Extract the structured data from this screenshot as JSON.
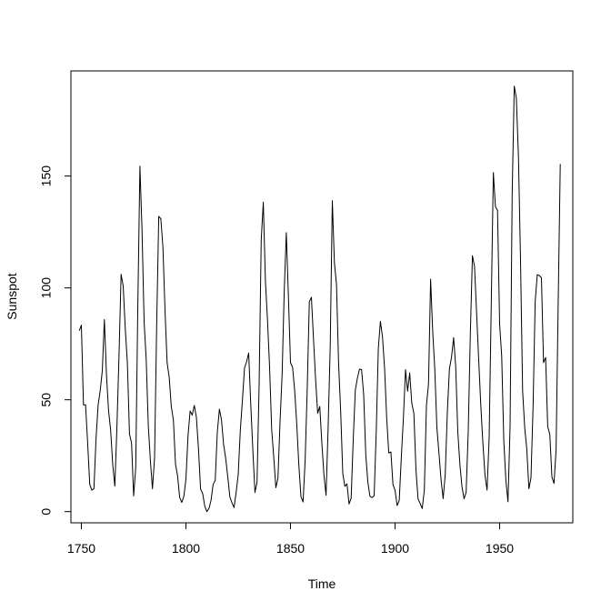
{
  "chart_data": {
    "type": "line",
    "title": "",
    "xlabel": "Time",
    "ylabel": "Sunspot",
    "xlim": [
      1745,
      1985
    ],
    "ylim": [
      -5,
      197
    ],
    "x_ticks": [
      1750,
      1800,
      1850,
      1900,
      1950
    ],
    "x_tick_labels": [
      "1750",
      "1800",
      "1850",
      "1900",
      "1950"
    ],
    "y_ticks": [
      0,
      50,
      100,
      150
    ],
    "y_tick_labels": [
      "0",
      "50",
      "100",
      "150"
    ],
    "grid": false,
    "legend": "none",
    "series": [
      {
        "x": [
          1749,
          1750,
          1751,
          1752,
          1753,
          1754,
          1755,
          1756,
          1757,
          1758,
          1759,
          1760,
          1761,
          1762,
          1763,
          1764,
          1765,
          1766,
          1767,
          1768,
          1769,
          1770,
          1771,
          1772,
          1773,
          1774,
          1775,
          1776,
          1777,
          1778,
          1779,
          1780,
          1781,
          1782,
          1783,
          1784,
          1785,
          1786,
          1787,
          1788,
          1789,
          1790,
          1791,
          1792,
          1793,
          1794,
          1795,
          1796,
          1797,
          1798,
          1799,
          1800,
          1801,
          1802,
          1803,
          1804,
          1805,
          1806,
          1807,
          1808,
          1809,
          1810,
          1811,
          1812,
          1813,
          1814,
          1815,
          1816,
          1817,
          1818,
          1819,
          1820,
          1821,
          1822,
          1823,
          1824,
          1825,
          1826,
          1827,
          1828,
          1829,
          1830,
          1831,
          1832,
          1833,
          1834,
          1835,
          1836,
          1837,
          1838,
          1839,
          1840,
          1841,
          1842,
          1843,
          1844,
          1845,
          1846,
          1847,
          1848,
          1849,
          1850,
          1851,
          1852,
          1853,
          1854,
          1855,
          1856,
          1857,
          1858,
          1859,
          1860,
          1861,
          1862,
          1863,
          1864,
          1865,
          1866,
          1867,
          1868,
          1869,
          1870,
          1871,
          1872,
          1873,
          1874,
          1875,
          1876,
          1877,
          1878,
          1879,
          1880,
          1881,
          1882,
          1883,
          1884,
          1885,
          1886,
          1887,
          1888,
          1889,
          1890,
          1891,
          1892,
          1893,
          1894,
          1895,
          1896,
          1897,
          1898,
          1899,
          1900,
          1901,
          1902,
          1903,
          1904,
          1905,
          1906,
          1907,
          1908,
          1909,
          1910,
          1911,
          1912,
          1913,
          1914,
          1915,
          1916,
          1917,
          1918,
          1919,
          1920,
          1921,
          1922,
          1923,
          1924,
          1925,
          1926,
          1927,
          1928,
          1929,
          1930,
          1931,
          1932,
          1933,
          1934,
          1935,
          1936,
          1937,
          1938,
          1939,
          1940,
          1941,
          1942,
          1943,
          1944,
          1945,
          1946,
          1947,
          1948,
          1949,
          1950,
          1951,
          1952,
          1953,
          1954,
          1955,
          1956,
          1957,
          1958,
          1959,
          1960,
          1961,
          1962,
          1963,
          1964,
          1965,
          1966,
          1967,
          1968,
          1969,
          1970,
          1971,
          1972,
          1973,
          1974,
          1975,
          1976,
          1977,
          1978,
          1979
        ],
        "y": [
          80.9,
          83.4,
          47.7,
          47.8,
          30.7,
          12.2,
          9.6,
          10.2,
          32.4,
          47.6,
          54.0,
          62.9,
          85.9,
          61.2,
          45.1,
          36.4,
          20.9,
          11.4,
          37.8,
          69.8,
          106.1,
          100.8,
          81.6,
          66.5,
          34.8,
          30.6,
          7.0,
          19.8,
          92.5,
          154.4,
          125.9,
          84.8,
          68.1,
          38.5,
          22.8,
          10.2,
          24.1,
          82.9,
          132.0,
          130.9,
          118.1,
          89.9,
          66.6,
          60.0,
          46.9,
          41.0,
          21.3,
          16.0,
          6.4,
          4.1,
          6.8,
          14.5,
          34.0,
          45.0,
          43.1,
          47.5,
          42.2,
          28.1,
          10.1,
          8.1,
          2.5,
          0.0,
          1.4,
          5.0,
          12.2,
          13.9,
          35.4,
          45.8,
          41.1,
          30.1,
          23.9,
          15.6,
          6.6,
          4.0,
          1.8,
          8.5,
          16.6,
          36.3,
          49.6,
          64.2,
          67.0,
          70.9,
          47.8,
          27.5,
          8.5,
          13.2,
          56.9,
          121.5,
          138.3,
          103.2,
          85.7,
          64.6,
          36.7,
          24.2,
          10.7,
          15.0,
          40.1,
          61.5,
          98.5,
          124.7,
          96.3,
          66.6,
          64.5,
          54.1,
          39.0,
          20.6,
          6.7,
          4.3,
          22.7,
          54.8,
          93.8,
          95.8,
          77.2,
          59.1,
          44.0,
          47.0,
          30.5,
          16.3,
          7.3,
          37.6,
          74.0,
          139.0,
          111.2,
          101.6,
          66.2,
          44.7,
          17.0,
          11.3,
          12.4,
          3.4,
          6.0,
          32.3,
          54.3,
          59.7,
          63.7,
          63.5,
          52.2,
          25.4,
          13.1,
          6.8,
          6.3,
          7.1,
          35.6,
          73.0,
          85.1,
          78.0,
          64.0,
          41.8,
          26.2,
          26.7,
          12.1,
          9.5,
          2.7,
          5.0,
          24.4,
          42.0,
          63.5,
          53.8,
          62.0,
          48.5,
          43.9,
          18.6,
          5.7,
          3.6,
          1.4,
          9.6,
          47.4,
          57.1,
          103.9,
          80.6,
          63.6,
          37.6,
          26.1,
          14.2,
          5.8,
          16.7,
          44.3,
          63.9,
          69.0,
          77.8,
          64.9,
          35.7,
          21.2,
          11.1,
          5.7,
          8.7,
          36.1,
          79.7,
          114.4,
          109.6,
          88.8,
          67.8,
          47.5,
          30.6,
          16.3,
          9.6,
          33.2,
          92.6,
          151.6,
          136.3,
          134.7,
          83.9,
          69.4,
          31.5,
          13.9,
          4.4,
          38.0,
          141.7,
          190.2,
          184.8,
          159.0,
          112.3,
          53.9,
          37.5,
          27.9,
          10.2,
          15.1,
          47.0,
          93.8,
          105.9,
          105.5,
          104.5,
          66.6,
          68.9,
          38.0,
          34.5,
          15.5,
          12.6,
          27.5,
          92.5,
          155.4
        ]
      }
    ]
  }
}
